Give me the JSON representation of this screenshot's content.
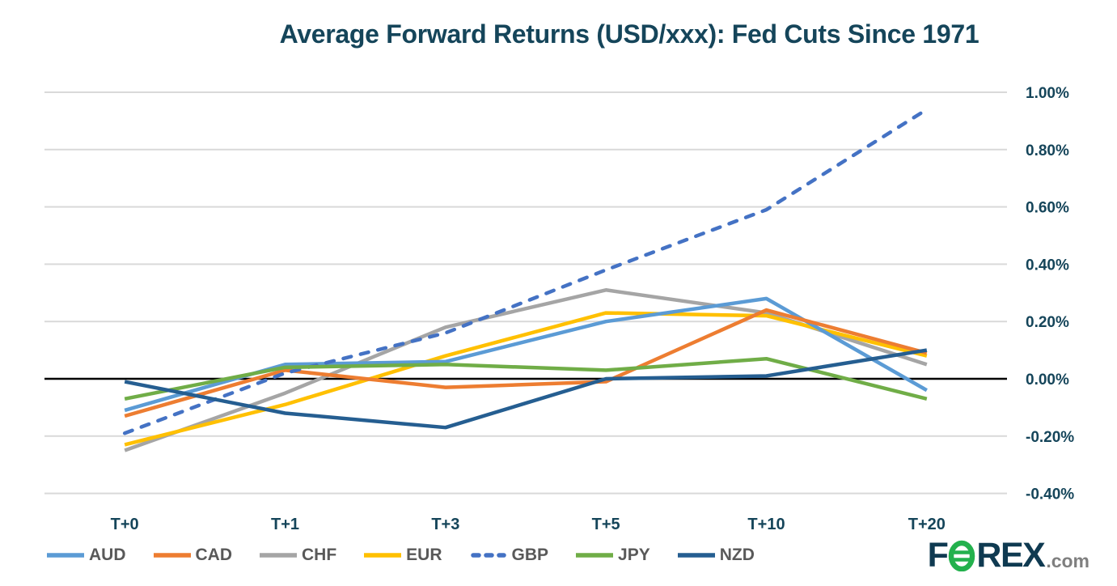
{
  "chart_data": {
    "type": "line",
    "title": "Average Forward Returns (USD/xxx): Fed Cuts Since 1971",
    "categories": [
      "T+0",
      "T+1",
      "T+3",
      "T+5",
      "T+10",
      "T+20"
    ],
    "series": [
      {
        "name": "AUD",
        "color": "#5B9BD5",
        "dash": false,
        "values": [
          -0.11,
          0.05,
          0.06,
          0.2,
          0.28,
          -0.04
        ]
      },
      {
        "name": "CAD",
        "color": "#ED7D31",
        "dash": false,
        "values": [
          -0.13,
          0.03,
          -0.03,
          -0.01,
          0.24,
          0.09
        ]
      },
      {
        "name": "CHF",
        "color": "#A5A5A5",
        "dash": false,
        "values": [
          -0.25,
          -0.05,
          0.18,
          0.31,
          0.23,
          0.05
        ]
      },
      {
        "name": "EUR",
        "color": "#FFC000",
        "dash": false,
        "values": [
          -0.23,
          -0.09,
          0.08,
          0.23,
          0.22,
          0.08
        ]
      },
      {
        "name": "GBP",
        "color": "#4472C4",
        "dash": true,
        "values": [
          -0.19,
          0.02,
          0.16,
          0.38,
          0.59,
          0.94
        ]
      },
      {
        "name": "JPY",
        "color": "#70AD47",
        "dash": false,
        "values": [
          -0.07,
          0.04,
          0.05,
          0.03,
          0.07,
          -0.07
        ]
      },
      {
        "name": "NZD",
        "color": "#255E91",
        "dash": false,
        "values": [
          -0.01,
          -0.12,
          -0.17,
          0.0,
          0.01,
          0.1
        ]
      }
    ],
    "y_ticks": [
      {
        "label": "1.00%",
        "value": 1.0
      },
      {
        "label": "0.80%",
        "value": 0.8
      },
      {
        "label": "0.60%",
        "value": 0.6
      },
      {
        "label": "0.40%",
        "value": 0.4
      },
      {
        "label": "0.20%",
        "value": 0.2
      },
      {
        "label": "0.00%",
        "value": 0.0
      },
      {
        "label": "-0.20%",
        "value": -0.2
      },
      {
        "label": "-0.40%",
        "value": -0.4
      }
    ],
    "ylim": [
      -0.4,
      1.0
    ],
    "xlabel": "",
    "ylabel": "",
    "grid": true,
    "axis_side": "right",
    "legend_position": "bottom-left",
    "colors": {
      "title_text": "#15455A",
      "axis_text": "#15455A",
      "legend_text": "#595959",
      "gridline": "#D9D9D9",
      "zero_line": "#000000"
    }
  },
  "logo": {
    "part1": "F",
    "o_icon": "green-ring-with-bars",
    "part2": "REX",
    "suffix": ".com"
  }
}
